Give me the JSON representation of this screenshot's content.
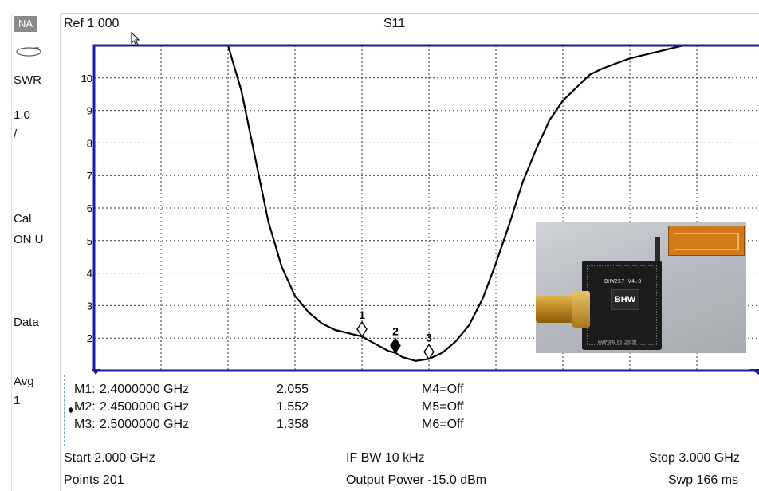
{
  "left_panel": {
    "mode": "NA",
    "format": "SWR",
    "scale_line1": "1.0",
    "scale_line2": "/",
    "cal_line1": "Cal",
    "cal_line2": "ON U",
    "data": "Data",
    "avg_line1": "Avg",
    "avg_line2": "1",
    "icon": "loop-arrow-icon"
  },
  "header": {
    "ref": "Ref 1.000",
    "parameter": "S11"
  },
  "colors": {
    "plot_border": "#1c1ca0",
    "trace": "#000000",
    "grid": "#333333",
    "table_border": "#7aa7b8"
  },
  "chart_data": {
    "type": "line",
    "title": "S11",
    "xlabel": "",
    "ylabel": "",
    "ylim": [
      1,
      11
    ],
    "xlim": [
      2.0,
      3.0
    ],
    "x_unit": "GHz",
    "yticks": [
      "2",
      "3",
      "4",
      "5",
      "6",
      "7",
      "8",
      "9",
      "10"
    ],
    "grid": true,
    "series": [
      {
        "x": [
          2.0,
          2.05,
          2.1,
          2.15,
          2.2,
          2.22,
          2.24,
          2.26,
          2.28,
          2.3,
          2.32,
          2.34,
          2.36,
          2.38,
          2.4,
          2.42,
          2.44,
          2.45,
          2.46,
          2.48,
          2.5,
          2.52,
          2.54,
          2.56,
          2.58,
          2.6,
          2.62,
          2.64,
          2.66,
          2.68,
          2.7,
          2.72,
          2.74,
          2.76,
          2.78,
          2.8,
          2.82,
          2.84,
          2.86,
          2.88,
          2.9,
          2.92,
          2.94,
          2.96,
          2.98,
          3.0
        ],
        "y": [
          11,
          11,
          11,
          11,
          11,
          9.6,
          7.6,
          5.6,
          4.2,
          3.3,
          2.8,
          2.45,
          2.25,
          2.15,
          2.05,
          1.82,
          1.6,
          1.55,
          1.42,
          1.3,
          1.36,
          1.55,
          1.9,
          2.4,
          3.2,
          4.3,
          5.5,
          6.8,
          7.8,
          8.7,
          9.3,
          9.7,
          10.1,
          10.3,
          10.45,
          10.6,
          10.7,
          10.8,
          10.9,
          11,
          11,
          11,
          11,
          11,
          11,
          11
        ]
      }
    ],
    "markers": [
      {
        "label": "1",
        "x": 2.4,
        "y": 2.055,
        "active": false
      },
      {
        "label": "2",
        "x": 2.45,
        "y": 1.552,
        "active": true
      },
      {
        "label": "3",
        "x": 2.5,
        "y": 1.358,
        "active": false
      }
    ]
  },
  "marker_table": {
    "rows": [
      {
        "name": "M1:",
        "freq": "2.4000000 GHz",
        "value": "2.055",
        "other": "M4=Off",
        "active_glyph": ""
      },
      {
        "name": "M2:",
        "freq": "2.4500000 GHz",
        "value": "1.552",
        "other": "M5=Off",
        "active_glyph": "◆"
      },
      {
        "name": "M3:",
        "freq": "2.5000000 GHz",
        "value": "1.358",
        "other": "M6=Off",
        "active_glyph": ""
      }
    ]
  },
  "photo": {
    "board_label": "BHW257 V4.0",
    "logo": "BHW",
    "board_id": "WAHFRRN_M3-2303M"
  },
  "footer": {
    "start": "Start 2.000 GHz",
    "ifbw": "IF BW 10 kHz",
    "stop": "Stop 3.000 GHz",
    "points": "Points 201",
    "power": "Output Power -15.0 dBm",
    "sweep": "Swp 166 ms"
  }
}
